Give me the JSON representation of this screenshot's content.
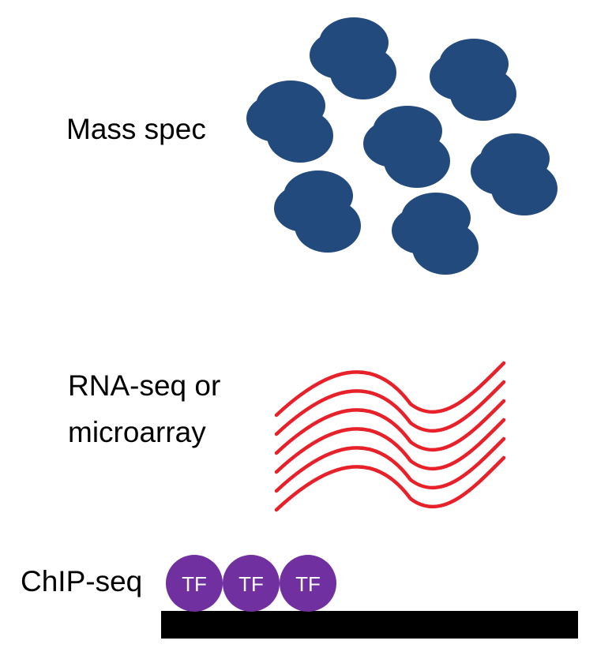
{
  "labels": {
    "mass_spec": "Mass spec",
    "rna_line1": "RNA-seq or",
    "rna_line2": "microarray",
    "chipseq": "ChIP-seq"
  },
  "tf_label": "TF",
  "colors": {
    "protein": "#234a7c",
    "rna": "#e8202a",
    "tf": "#7030a0",
    "dna": "#000000",
    "text": "#000000"
  },
  "icons": {
    "protein": "protein-blob-icon",
    "rna": "rna-strand-icon",
    "tf": "transcription-factor-icon",
    "dna": "dna-bar-icon"
  }
}
